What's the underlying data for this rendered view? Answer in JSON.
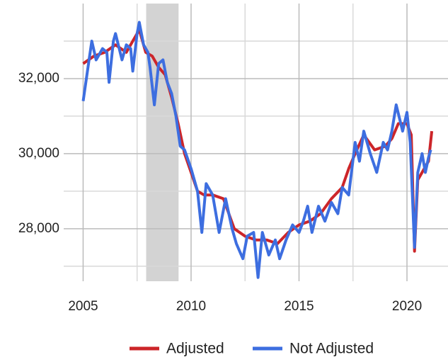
{
  "chart_data": {
    "type": "line",
    "xlim": [
      2004.1,
      2021.9
    ],
    "xticks": [
      2005,
      2010,
      2015,
      2020
    ],
    "xgrid_minor": [
      2007.5,
      2012.5,
      2017.5
    ],
    "ylim": [
      26600,
      34000
    ],
    "yticks": [
      {
        "value": 28000,
        "label": "28,000"
      },
      {
        "value": 30000,
        "label": "30,000"
      },
      {
        "value": 32000,
        "label": "32,000"
      }
    ],
    "ygrid_minor": [
      27000,
      29000,
      31000,
      33000
    ],
    "grid": true,
    "legend": "bottom",
    "shaded_regions": [
      {
        "x": [
          2007.92,
          2009.42
        ],
        "color": "#d3d3d3"
      }
    ],
    "series": [
      {
        "name": "Adjusted",
        "color": "#cc2529",
        "x": [
          2005.0,
          2005.5,
          2006.0,
          2006.5,
          2007.0,
          2007.3,
          2007.6,
          2007.9,
          2008.2,
          2008.5,
          2008.8,
          2009.1,
          2009.4,
          2009.7,
          2010.0,
          2010.3,
          2010.6,
          2011.0,
          2011.5,
          2012.0,
          2012.5,
          2013.0,
          2013.5,
          2014.0,
          2014.5,
          2015.0,
          2015.5,
          2016.0,
          2016.5,
          2017.0,
          2017.3,
          2017.6,
          2018.0,
          2018.5,
          2019.0,
          2019.3,
          2019.6,
          2020.0,
          2020.2,
          2020.35,
          2020.5,
          2020.8,
          2021.0,
          2021.15
        ],
        "values": [
          32400,
          32600,
          32700,
          32900,
          32700,
          33000,
          33300,
          32700,
          32600,
          32300,
          32100,
          31500,
          30800,
          30000,
          29500,
          29000,
          28900,
          28900,
          28800,
          28000,
          27800,
          27700,
          27700,
          27600,
          27900,
          28100,
          28200,
          28400,
          28800,
          29100,
          29600,
          30000,
          30500,
          30100,
          30200,
          30400,
          30800,
          30800,
          30500,
          27400,
          29300,
          29600,
          29800,
          30600
        ]
      },
      {
        "name": "Not Adjusted",
        "color": "#3d6ee0",
        "x": [
          2005.0,
          2005.3,
          2005.4,
          2005.6,
          2005.9,
          2006.1,
          2006.2,
          2006.4,
          2006.5,
          2006.8,
          2007.0,
          2007.2,
          2007.3,
          2007.5,
          2007.6,
          2007.8,
          2008.0,
          2008.1,
          2008.3,
          2008.5,
          2008.7,
          2008.9,
          2009.1,
          2009.3,
          2009.5,
          2009.7,
          2010.0,
          2010.3,
          2010.5,
          2010.7,
          2011.0,
          2011.3,
          2011.6,
          2011.9,
          2012.1,
          2012.4,
          2012.6,
          2012.9,
          2013.1,
          2013.3,
          2013.6,
          2013.9,
          2014.1,
          2014.4,
          2014.7,
          2015.0,
          2015.2,
          2015.4,
          2015.6,
          2015.9,
          2016.2,
          2016.5,
          2016.8,
          2017.0,
          2017.3,
          2017.6,
          2017.8,
          2018.0,
          2018.3,
          2018.6,
          2018.9,
          2019.1,
          2019.3,
          2019.5,
          2019.8,
          2020.0,
          2020.15,
          2020.35,
          2020.5,
          2020.7,
          2020.85,
          2021.0,
          2021.1
        ],
        "values": [
          31400,
          32600,
          33000,
          32500,
          32800,
          32700,
          31900,
          33000,
          33200,
          32500,
          32900,
          32800,
          32200,
          33200,
          33500,
          32900,
          32700,
          32300,
          31300,
          32400,
          32500,
          31900,
          31600,
          31000,
          30200,
          30100,
          29600,
          29000,
          27900,
          29200,
          28900,
          27900,
          28800,
          28000,
          27600,
          27200,
          27800,
          27900,
          26700,
          27900,
          27300,
          27700,
          27200,
          27700,
          28100,
          27900,
          28200,
          28600,
          27900,
          28600,
          28200,
          28700,
          28400,
          29100,
          28900,
          30300,
          29800,
          30600,
          30000,
          29500,
          30300,
          30100,
          30600,
          31300,
          30600,
          31100,
          30300,
          27500,
          29500,
          30000,
          29500,
          29900,
          30100
        ]
      }
    ]
  }
}
